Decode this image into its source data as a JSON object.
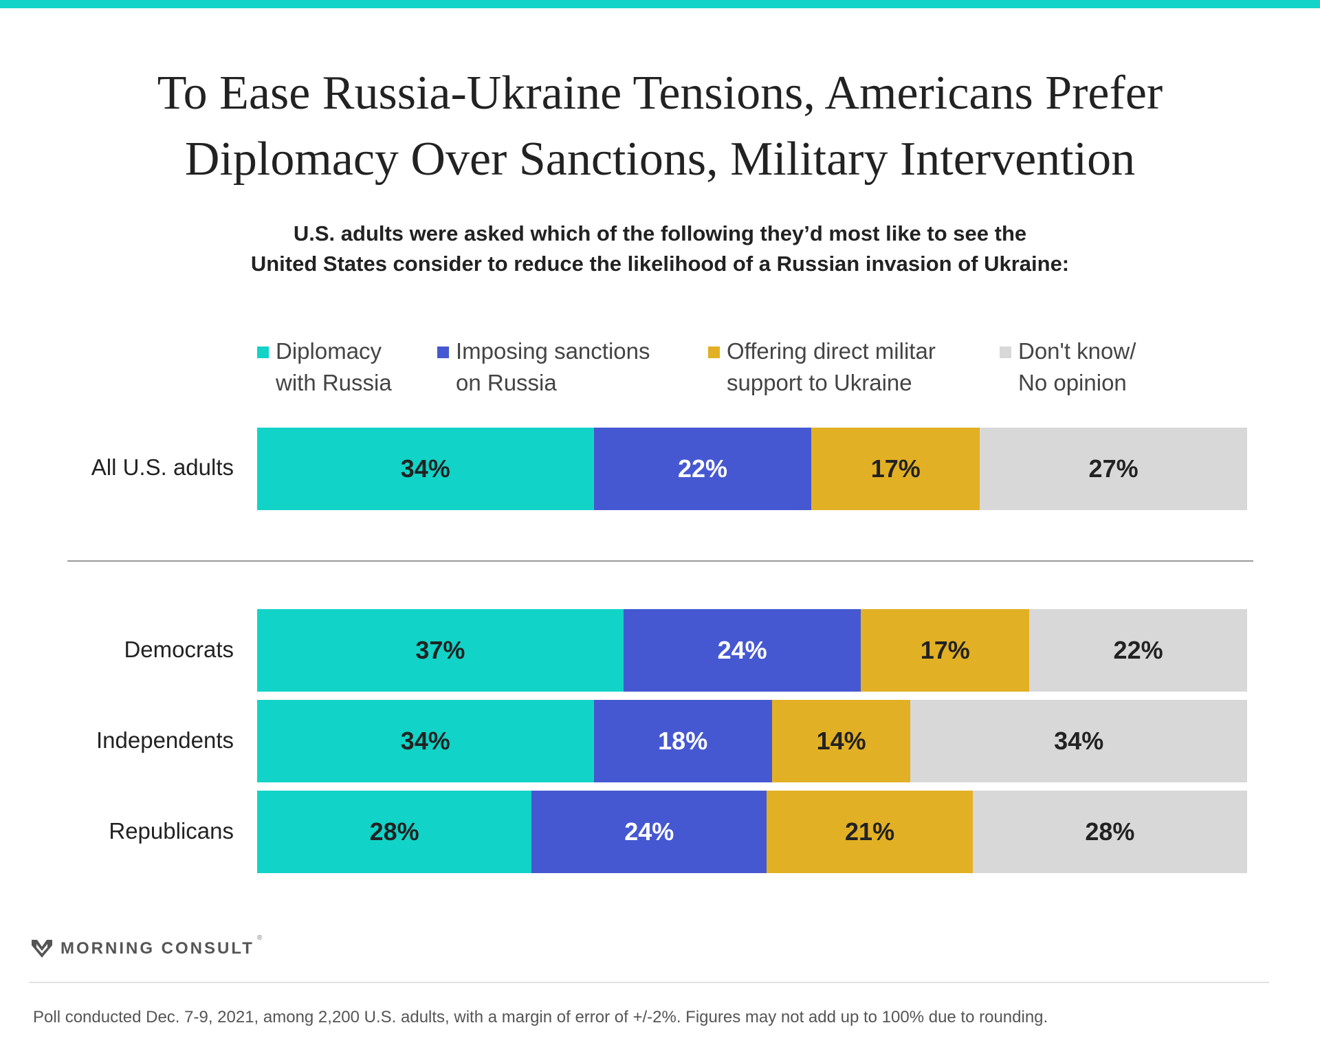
{
  "title_lines": [
    "To Ease Russia-Ukraine Tensions, Americans Prefer",
    "Diplomacy Over Sanctions, Military Intervention"
  ],
  "subtitle_lines": [
    "U.S. adults were asked which of the following they’d most like to see the",
    "United States consider to reduce the likelihood of a Russian invasion of Ukraine:"
  ],
  "legend": [
    {
      "lines": [
        "Diplomacy",
        "with Russia"
      ],
      "color": "#12d3c7"
    },
    {
      "lines": [
        "Imposing sanctions",
        "on Russia"
      ],
      "color": "#4658d1"
    },
    {
      "lines": [
        "Offering direct militar",
        "support to Ukraine"
      ],
      "color": "#e2b024"
    },
    {
      "lines": [
        "Don't know/",
        "No opinion"
      ],
      "color": "#d8d8d8"
    }
  ],
  "chart_data": {
    "type": "bar",
    "orientation": "horizontal",
    "stacked": true,
    "title": "To Ease Russia-Ukraine Tensions, Americans Prefer Diplomacy Over Sanctions, Military Intervention",
    "subtitle": "U.S. adults were asked which of the following they’d most like to see the United States consider to reduce the likelihood of a Russian invasion of Ukraine:",
    "categories": [
      "All U.S. adults",
      "Democrats",
      "Independents",
      "Republicans"
    ],
    "unit": "%",
    "xlim": [
      0,
      100
    ],
    "series": [
      {
        "name": "Diplomacy with Russia",
        "color": "#12d3c7",
        "label_color": "#222222",
        "values": [
          34,
          37,
          34,
          28
        ]
      },
      {
        "name": "Imposing sanctions on Russia",
        "color": "#4658d1",
        "label_color": "#ffffff",
        "values": [
          22,
          24,
          18,
          24
        ]
      },
      {
        "name": "Offering direct militar support to Ukraine",
        "color": "#e2b024",
        "label_color": "#222222",
        "values": [
          17,
          17,
          14,
          21
        ]
      },
      {
        "name": "Don't know/ No opinion",
        "color": "#d8d8d8",
        "label_color": "#222222",
        "values": [
          27,
          22,
          34,
          28
        ]
      }
    ],
    "data_labels": [
      [
        "34%",
        "22%",
        "17%",
        "27%"
      ],
      [
        "37%",
        "24%",
        "17%",
        "22%"
      ],
      [
        "34%",
        "18%",
        "14%",
        "34%"
      ],
      [
        "28%",
        "24%",
        "21%",
        "28%"
      ]
    ]
  },
  "brand": {
    "name": "MORNING CONSULT",
    "mark": "®"
  },
  "footnote": "Poll conducted Dec. 7-9, 2021, among 2,200 U.S. adults, with a margin of error of +/-2%. Figures may not add up to 100% due to rounding."
}
